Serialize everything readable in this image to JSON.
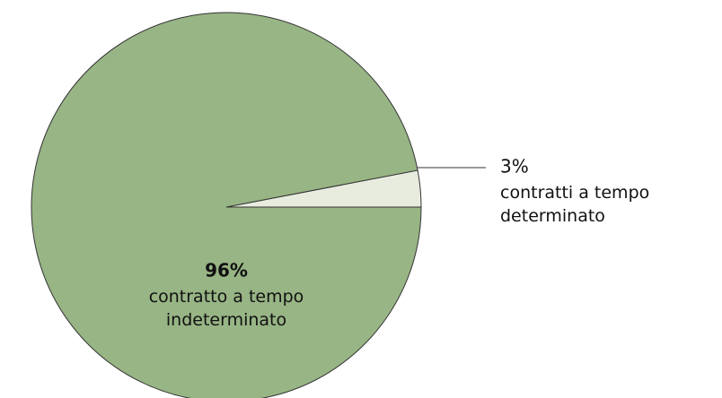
{
  "chart_data": {
    "type": "pie",
    "categories": [
      "contratto a tempo indeterminato",
      "contratti a tempo determinato"
    ],
    "values": [
      96,
      3
    ],
    "value_labels": [
      "96%",
      "3%"
    ],
    "colors": [
      "#98b585",
      "#e8ecdf"
    ]
  }
}
